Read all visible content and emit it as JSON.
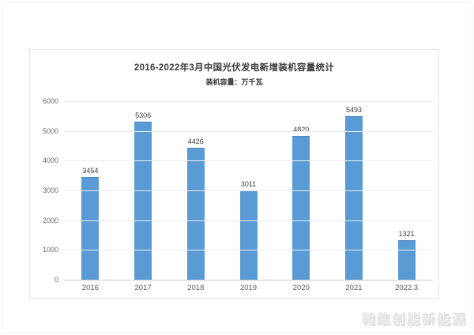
{
  "page": {
    "watermark": "翰维创能新能源"
  },
  "chart_data": {
    "type": "bar",
    "title": "2016-2022年3月中国光伏发电新增装机容量统计",
    "subtitle": "装机容量：万千瓦",
    "categories": [
      "2016",
      "2017",
      "2018",
      "2019",
      "2020",
      "2021",
      "2022.3"
    ],
    "values": [
      3454,
      5306,
      4426,
      3011,
      4820,
      5493,
      1321
    ],
    "ylim": [
      0,
      6000
    ],
    "yticks": [
      0,
      1000,
      2000,
      3000,
      4000,
      5000,
      6000
    ],
    "bar_color": "#5b9bd5",
    "grid": true,
    "legend_position": "none",
    "value_labels_shown": true
  }
}
